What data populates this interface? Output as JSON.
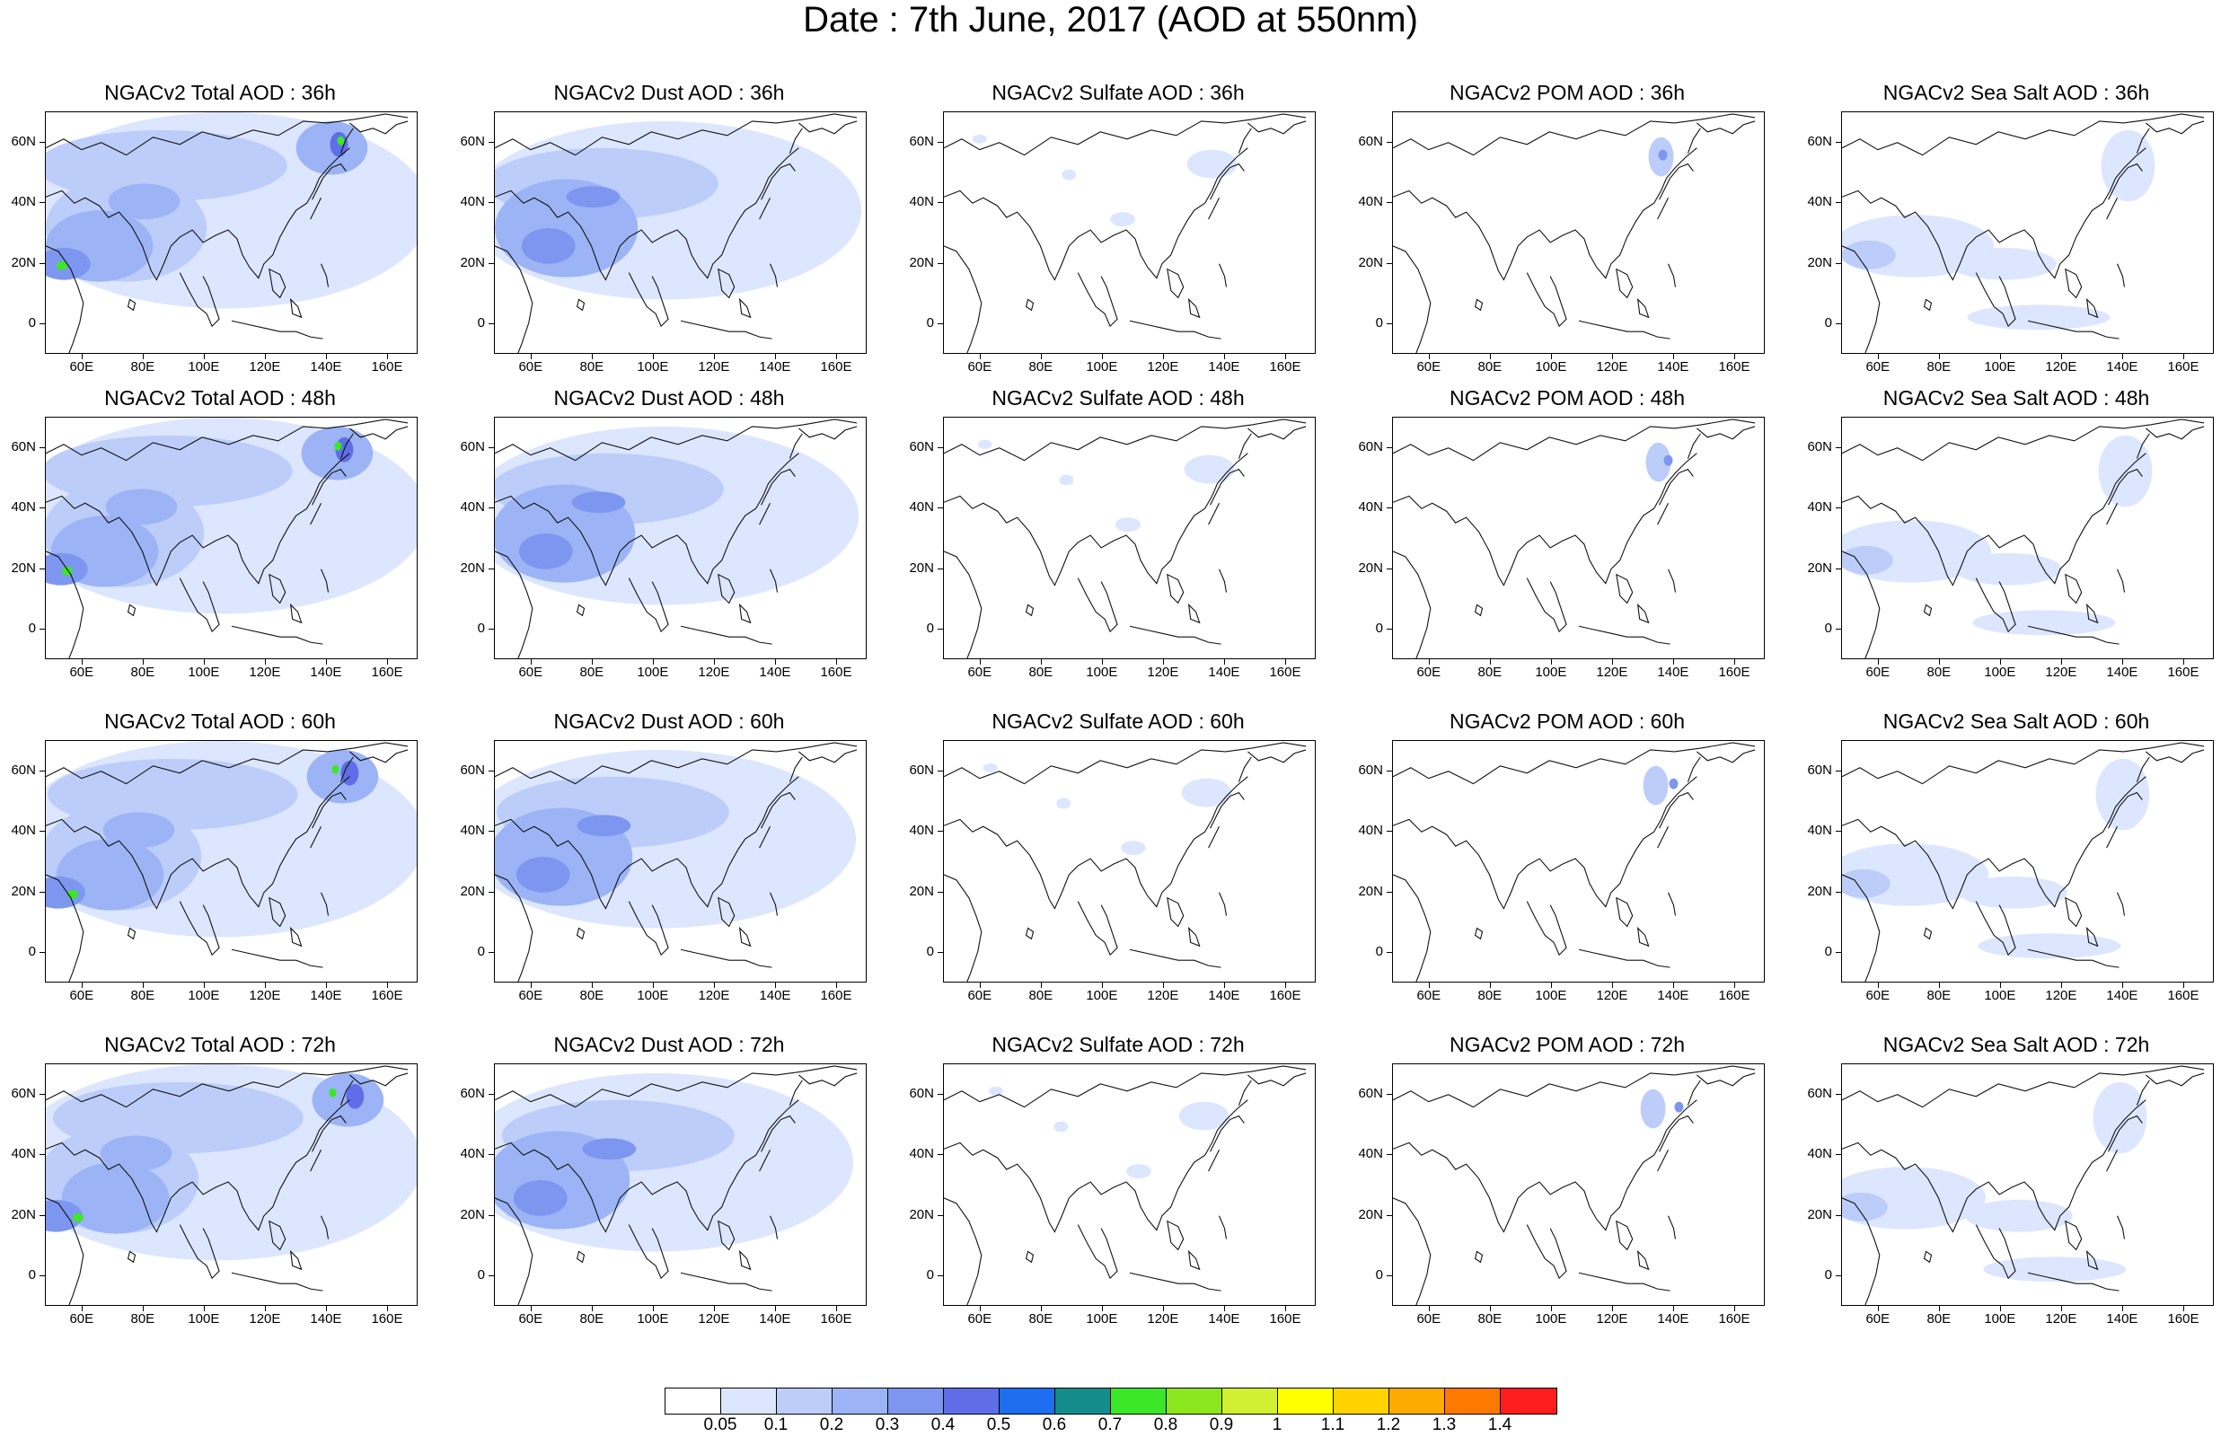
{
  "title": "Date : 7th June, 2017 (AOD at 550nm)",
  "axes": {
    "x_ticks": [
      "60E",
      "80E",
      "100E",
      "120E",
      "140E",
      "160E"
    ],
    "y_ticks": [
      "60N",
      "40N",
      "20N",
      "0"
    ],
    "x_tick_values": [
      60,
      80,
      100,
      120,
      140,
      160
    ],
    "y_tick_values": [
      60,
      40,
      20,
      0
    ],
    "lon_range": [
      48,
      170
    ],
    "lat_range": [
      -10,
      70
    ]
  },
  "panel_titles": [
    [
      "NGACv2 Total AOD : 36h",
      "NGACv2 Dust AOD : 36h",
      "NGACv2 Sulfate AOD : 36h",
      "NGACv2 POM AOD : 36h",
      "NGACv2 Sea Salt AOD : 36h"
    ],
    [
      "NGACv2 Total AOD : 48h",
      "NGACv2 Dust AOD : 48h",
      "NGACv2 Sulfate AOD : 48h",
      "NGACv2 POM AOD : 48h",
      "NGACv2 Sea Salt AOD : 48h"
    ],
    [
      "NGACv2 Total AOD : 60h",
      "NGACv2 Dust AOD : 60h",
      "NGACv2 Sulfate AOD : 60h",
      "NGACv2 POM AOD : 60h",
      "NGACv2 Sea Salt AOD : 60h"
    ],
    [
      "NGACv2 Total AOD : 72h",
      "NGACv2 Dust AOD : 72h",
      "NGACv2 Sulfate AOD : 72h",
      "NGACv2 POM AOD : 72h",
      "NGACv2 Sea Salt  AOD : 72h"
    ]
  ],
  "colorbar": {
    "labels": [
      "0.05",
      "0.1",
      "0.2",
      "0.3",
      "0.4",
      "0.5",
      "0.6",
      "0.7",
      "0.8",
      "0.9",
      "1",
      "1.1",
      "1.2",
      "1.3",
      "1.4"
    ],
    "colors": [
      "#ffffff",
      "#dce6ff",
      "#bccdfa",
      "#9cb4f5",
      "#7d96f0",
      "#5f6ee8",
      "#1e6ef0",
      "#148c8c",
      "#3ce628",
      "#8ce61e",
      "#d2f032",
      "#ffff00",
      "#ffd200",
      "#ffaa00",
      "#ff7800",
      "#ff1e1e"
    ]
  },
  "colors": {
    "low": "#dce6ff",
    "light": "#bccdfa",
    "mid": "#9cb4f5",
    "high": "#7d96f0",
    "peak": "#5f6ee8",
    "hot": "#3ce628"
  }
}
